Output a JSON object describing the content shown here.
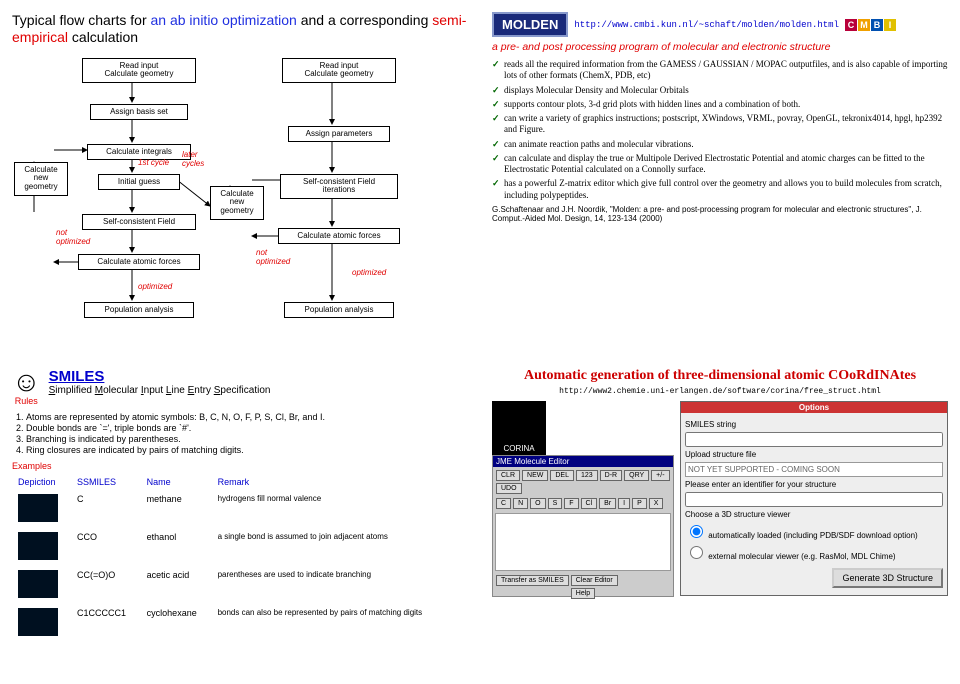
{
  "q1": {
    "title_pre": "Typical flow charts for ",
    "title_blue1": "an ab initio optimization",
    "title_mid": " and a corresponding ",
    "title_red": "semi-empirical",
    "title_post": " calculation",
    "boxes": {
      "readL": "Read input\nCalculate geometry",
      "readR": "Read input\nCalculate geometry",
      "basis": "Assign basis set",
      "params": "Assign parameters",
      "integrals": "Calculate integrals",
      "guess": "Initial guess",
      "newgeoL": "Calculate\nnew\ngeometry",
      "newgeoR": "Calculate\nnew\ngeometry",
      "scfL": "Self-consistent Field",
      "scfR": "Self-consistent Field\niterations",
      "forcesL": "Calculate atomic forces",
      "forcesR": "Calculate atomic forces",
      "popL": "Population analysis",
      "popR": "Population analysis"
    },
    "labels": {
      "cycle1": "1st cycle",
      "later": "later\ncycles",
      "notoptL": "not\noptimized",
      "notoptR": "not\noptimized",
      "optL": "optimized",
      "optR": "optimized"
    }
  },
  "q2": {
    "logo": "MOLDEN",
    "url": "http://www.cmbi.kun.nl/~schaft/molden/molden.html",
    "cmbi_colors": [
      "#b8003a",
      "#f0a000",
      "#0050b0",
      "#e0c000"
    ],
    "cmbi_letters": [
      "C",
      "M",
      "B",
      "I"
    ],
    "subtitle": "a pre- and post processing program of molecular and electronic structure",
    "checks": [
      "reads all the required information from the GAMESS / GAUSSIAN / MOPAC outputfiles, and is also capable of importing lots of other formats (ChemX, PDB, etc)",
      "displays Molecular Density and Molecular Orbitals",
      "supports contour plots, 3-d grid plots with hidden lines and a combination of both.",
      "can write a variety of graphics instructions; postscript, XWindows, VRML, povray, OpenGL, tekronix4014, hpgl, hp2392 and Figure.",
      "can animate reaction paths and molecular vibrations.",
      "can calculate and display the true or Multipole Derived Electrostatic Potential and atomic charges can be fitted to the Electrostatic Potential calculated on a Connolly surface.",
      "has a powerful Z-matrix editor which give full control over the geometry and allows you to build molecules from scratch, including polypeptides."
    ],
    "citation": "G.Schaftenaar and J.H. Noordik, \"Molden: a pre- and post-processing program for molecular and electronic structures\", J. Comput.-Aided Mol. Design, 14, 123-134 (2000)"
  },
  "q3": {
    "title": "SMILES",
    "subtitle_parts": [
      "S",
      "implified ",
      "M",
      "olecular ",
      "I",
      "nput ",
      "L",
      "ine ",
      "E",
      "ntry ",
      "S",
      "pecification"
    ],
    "rules_label": "Rules",
    "rules": [
      "Atoms are represented by atomic symbols: B, C, N, O, F, P, S, Cl, Br, and I.",
      "Double bonds are `=', triple bonds are `#'.",
      "Branching is indicated by parentheses.",
      "Ring closures are indicated by pairs of matching digits."
    ],
    "examples_label": "Examples",
    "headers": [
      "Depiction",
      "SSMILES",
      "Name",
      "Remark"
    ],
    "rows": [
      {
        "s": "C",
        "n": "methane",
        "r": "hydrogens fill normal valence"
      },
      {
        "s": "CCO",
        "n": "ethanol",
        "r": "a single bond is assumed to join adjacent atoms"
      },
      {
        "s": "CC(=O)O",
        "n": "acetic acid",
        "r": "parentheses are used to indicate branching"
      },
      {
        "s": "C1CCCCC1",
        "n": "cyclohexane",
        "r": "bonds can also be represented by pairs of matching digits"
      }
    ]
  },
  "q4": {
    "title": "Automatic generation of three-dimensional atomic COoRdINAtes",
    "url": "http://www2.chemie.uni-erlangen.de/software/corina/free_struct.html",
    "corina": "CORINA",
    "jme_title": "JME Molecule Editor",
    "jme_buttons": [
      "CLR",
      "NEW",
      "DEL",
      "123",
      "D-R",
      "QRY",
      "+/-",
      "UDO"
    ],
    "jme_atoms": [
      "C",
      "N",
      "O",
      "S",
      "F",
      "Cl",
      "Br",
      "I",
      "P",
      "X"
    ],
    "jme_bottom": [
      "Transfer as SMILES",
      "Clear Editor"
    ],
    "jme_help": "Help",
    "opts_title": "Options",
    "smiles_lbl": "SMILES string",
    "upload_lbl": "Upload structure file",
    "notyet": "NOT YET SUPPORTED - COMING SOON",
    "enter_id": "Please enter an identifier for your structure",
    "viewer_lbl": "Choose a 3D structure viewer",
    "opt1": "automatically loaded (including PDB/SDF download option)",
    "opt2": "external molecular viewer (e.g. RasMol, MDL Chime)",
    "gen_btn": "Generate 3D Structure"
  }
}
